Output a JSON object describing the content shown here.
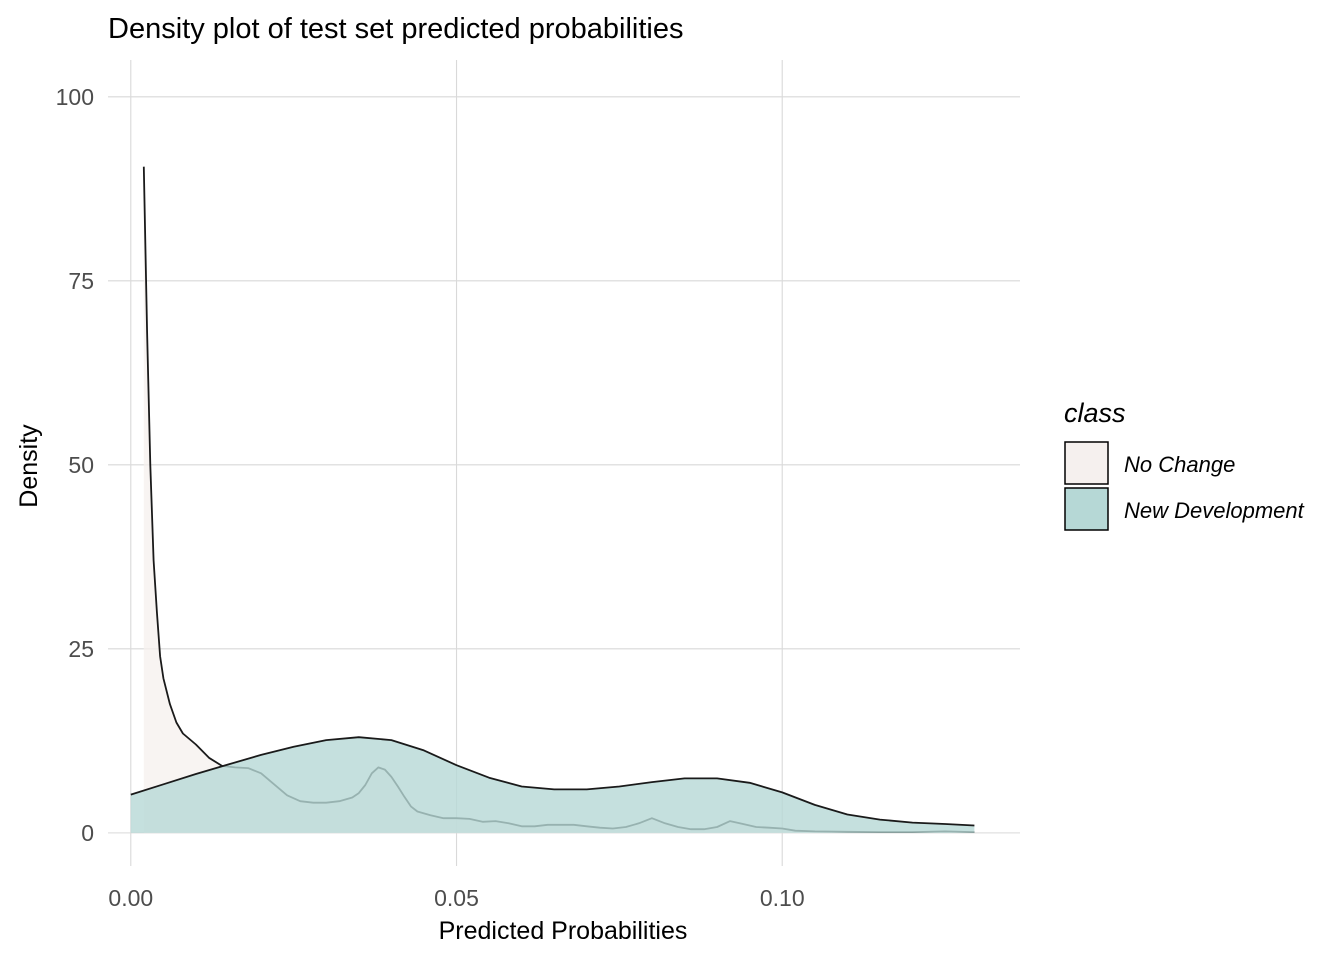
{
  "chart_data": {
    "type": "area",
    "title": "Density plot of test set predicted probabilities",
    "xlabel": "Predicted Probabilities",
    "ylabel": "Density",
    "xlim": [
      -0.0035,
      0.1365
    ],
    "ylim": [
      -4.5,
      105
    ],
    "x_ticks": [
      0.0,
      0.05,
      0.1
    ],
    "x_tick_labels": [
      "0.00",
      "0.05",
      "0.10"
    ],
    "y_ticks": [
      0,
      25,
      50,
      75,
      100
    ],
    "y_tick_labels": [
      "0",
      "25",
      "50",
      "75",
      "100"
    ],
    "grid": true,
    "legend": {
      "title": "class",
      "position": "right",
      "entries": [
        "No Change",
        "New Development"
      ]
    },
    "series": [
      {
        "name": "No Change",
        "color": "#f5f0ee",
        "opacity": 0.75,
        "points": [
          [
            0.002,
            90.5
          ],
          [
            0.0025,
            68
          ],
          [
            0.003,
            50
          ],
          [
            0.0035,
            37
          ],
          [
            0.004,
            30
          ],
          [
            0.0045,
            24
          ],
          [
            0.005,
            21
          ],
          [
            0.006,
            17.5
          ],
          [
            0.007,
            15
          ],
          [
            0.008,
            13.5
          ],
          [
            0.01,
            12
          ],
          [
            0.012,
            10.2
          ],
          [
            0.014,
            9.1
          ],
          [
            0.016,
            8.9
          ],
          [
            0.018,
            8.8
          ],
          [
            0.02,
            8.1
          ],
          [
            0.022,
            6.6
          ],
          [
            0.024,
            5.1
          ],
          [
            0.026,
            4.3
          ],
          [
            0.028,
            4.1
          ],
          [
            0.03,
            4.1
          ],
          [
            0.032,
            4.3
          ],
          [
            0.034,
            4.8
          ],
          [
            0.035,
            5.4
          ],
          [
            0.036,
            6.5
          ],
          [
            0.037,
            8.1
          ],
          [
            0.038,
            8.9
          ],
          [
            0.039,
            8.6
          ],
          [
            0.04,
            7.6
          ],
          [
            0.041,
            6.3
          ],
          [
            0.042,
            4.9
          ],
          [
            0.043,
            3.6
          ],
          [
            0.044,
            2.9
          ],
          [
            0.046,
            2.4
          ],
          [
            0.048,
            2.0
          ],
          [
            0.05,
            2.0
          ],
          [
            0.052,
            1.9
          ],
          [
            0.054,
            1.5
          ],
          [
            0.056,
            1.6
          ],
          [
            0.058,
            1.3
          ],
          [
            0.06,
            0.9
          ],
          [
            0.062,
            0.9
          ],
          [
            0.064,
            1.1
          ],
          [
            0.066,
            1.1
          ],
          [
            0.068,
            1.1
          ],
          [
            0.07,
            0.9
          ],
          [
            0.072,
            0.7
          ],
          [
            0.074,
            0.6
          ],
          [
            0.076,
            0.8
          ],
          [
            0.078,
            1.3
          ],
          [
            0.08,
            2.0
          ],
          [
            0.082,
            1.3
          ],
          [
            0.084,
            0.8
          ],
          [
            0.086,
            0.5
          ],
          [
            0.088,
            0.5
          ],
          [
            0.09,
            0.8
          ],
          [
            0.092,
            1.6
          ],
          [
            0.094,
            1.2
          ],
          [
            0.096,
            0.8
          ],
          [
            0.098,
            0.7
          ],
          [
            0.1,
            0.6
          ],
          [
            0.102,
            0.3
          ],
          [
            0.105,
            0.2
          ],
          [
            0.11,
            0.15
          ],
          [
            0.115,
            0.1
          ],
          [
            0.12,
            0.1
          ],
          [
            0.125,
            0.2
          ],
          [
            0.1295,
            0.1
          ]
        ]
      },
      {
        "name": "New Development",
        "color": "#b6d8d6",
        "opacity": 0.8,
        "points": [
          [
            0.0,
            5.2
          ],
          [
            0.005,
            6.6
          ],
          [
            0.01,
            8.0
          ],
          [
            0.015,
            9.3
          ],
          [
            0.02,
            10.6
          ],
          [
            0.025,
            11.7
          ],
          [
            0.03,
            12.6
          ],
          [
            0.035,
            13.0
          ],
          [
            0.04,
            12.6
          ],
          [
            0.045,
            11.2
          ],
          [
            0.05,
            9.2
          ],
          [
            0.055,
            7.5
          ],
          [
            0.06,
            6.3
          ],
          [
            0.065,
            5.9
          ],
          [
            0.07,
            5.9
          ],
          [
            0.075,
            6.3
          ],
          [
            0.08,
            6.9
          ],
          [
            0.085,
            7.4
          ],
          [
            0.09,
            7.4
          ],
          [
            0.095,
            6.8
          ],
          [
            0.1,
            5.5
          ],
          [
            0.105,
            3.8
          ],
          [
            0.11,
            2.5
          ],
          [
            0.115,
            1.8
          ],
          [
            0.12,
            1.4
          ],
          [
            0.125,
            1.2
          ],
          [
            0.1295,
            1.0
          ]
        ]
      }
    ]
  }
}
